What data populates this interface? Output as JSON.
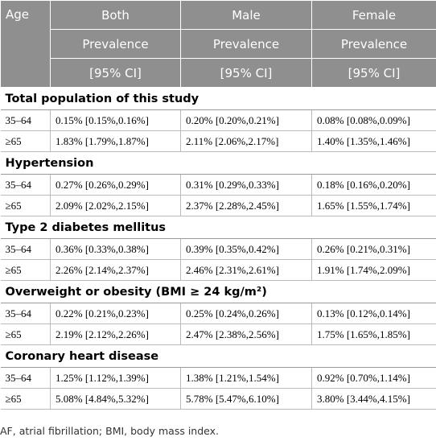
{
  "header": {
    "age": "Age",
    "columns": [
      {
        "name": "Both",
        "lines": [
          "Prevalence",
          "[95% CI]"
        ]
      },
      {
        "name": "Male",
        "lines": [
          "Prevalence",
          "[95% CI]"
        ]
      },
      {
        "name": "Female",
        "lines": [
          "Prevalence",
          "[95% CI]"
        ]
      }
    ]
  },
  "sections": [
    {
      "title": "Total population of this study",
      "rows": [
        [
          "35–64",
          "0.15% [0.15%,0.16%]",
          "0.20% [0.20%,0.21%]",
          "0.08% [0.08%,0.09%]"
        ],
        [
          "≥65",
          "1.83% [1.79%,1.87%]",
          "2.11% [2.06%,2.17%]",
          "1.40% [1.35%,1.46%]"
        ]
      ]
    },
    {
      "title": "Hypertension",
      "rows": [
        [
          "35–64",
          "0.27% [0.26%,0.29%]",
          "0.31% [0.29%,0.33%]",
          "0.18% [0.16%,0.20%]"
        ],
        [
          "≥65",
          "2.09% [2.02%,2.15%]",
          "2.37% [2.28%,2.45%]",
          "1.65% [1.55%,1.74%]"
        ]
      ]
    },
    {
      "title": "Type 2 diabetes mellitus",
      "rows": [
        [
          "35–64",
          "0.36% [0.33%,0.38%]",
          "0.39% [0.35%,0.42%]",
          "0.26% [0.21%,0.31%]"
        ],
        [
          "≥65",
          "2.26% [2.14%,2.37%]",
          "2.46% [2.31%,2.61%]",
          "1.91% [1.74%,2.09%]"
        ]
      ]
    },
    {
      "title": "Overweight or obesity (BMI ≥ 24 kg/m²)",
      "rows": [
        [
          "35–64",
          "0.22% [0.21%,0.23%]",
          "0.25% [0.24%,0.26%]",
          "0.13% [0.12%,0.14%]"
        ],
        [
          "≥65",
          "2.19% [2.12%,2.26%]",
          "2.47% [2.38%,2.56%]",
          "1.75% [1.65%,1.85%]"
        ]
      ]
    },
    {
      "title": "Coronary heart disease",
      "rows": [
        [
          "35–64",
          "1.25% [1.12%,1.39%]",
          "1.38% [1.21%,1.54%]",
          "0.92% [0.70%,1.14%]"
        ],
        [
          "≥65",
          "5.08% [4.84%,5.32%]",
          "5.78% [5.47%,6.10%]",
          "3.80% [3.44%,4.15%]"
        ]
      ]
    }
  ],
  "footnote": "AF, atrial fibrillation; BMI, body mass index."
}
